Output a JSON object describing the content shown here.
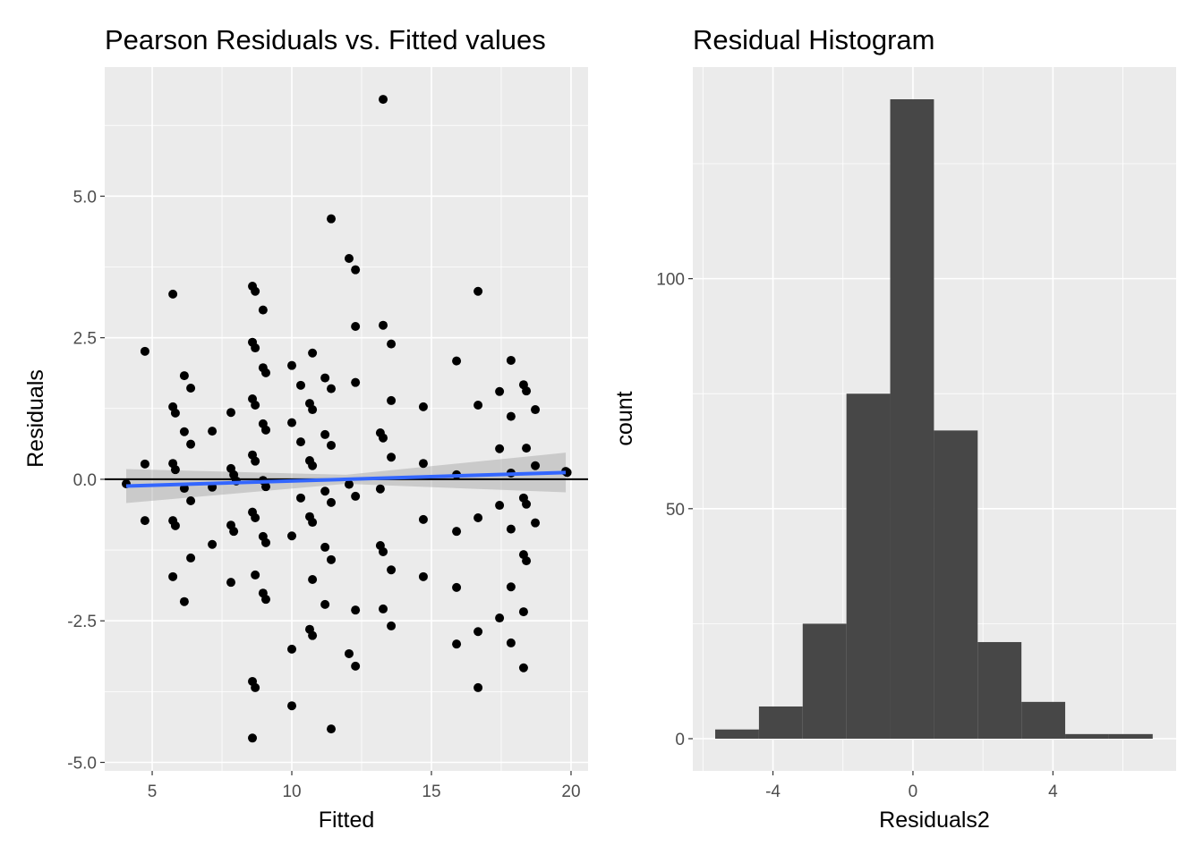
{
  "chart_data": [
    {
      "type": "scatter",
      "title": "Pearson Residuals vs. Fitted values",
      "xlabel": "Fitted",
      "ylabel": "Residuals",
      "xlim": [
        3.3,
        20.61
      ],
      "ylim": [
        -5.15,
        7.28
      ],
      "xticks": [
        5,
        10,
        15,
        20
      ],
      "xtick_labels": [
        "5",
        "10",
        "15",
        "20"
      ],
      "yticks": [
        -5,
        -2.5,
        0,
        2.5,
        5
      ],
      "ytick_labels": [
        "-5.0",
        "-2.5",
        "0.0",
        "2.5",
        "5.0"
      ],
      "grid": true,
      "hline": 0,
      "smooth": {
        "color": "#3366FF",
        "x": [
          4.07,
          19.81
        ],
        "y": [
          -0.12,
          0.12
        ],
        "ci_halfwidth": [
          0.3,
          0.08,
          0.35
        ]
      },
      "points": [
        [
          4.07,
          -0.08
        ],
        [
          4.74,
          2.26
        ],
        [
          4.74,
          0.27
        ],
        [
          4.74,
          -0.73
        ],
        [
          5.74,
          3.27
        ],
        [
          5.74,
          1.28
        ],
        [
          5.74,
          0.28
        ],
        [
          5.74,
          -0.73
        ],
        [
          5.74,
          -1.72
        ],
        [
          5.83,
          1.17
        ],
        [
          5.83,
          0.17
        ],
        [
          5.83,
          -0.82
        ],
        [
          6.15,
          1.83
        ],
        [
          6.15,
          0.84
        ],
        [
          6.15,
          -0.16
        ],
        [
          6.15,
          -2.16
        ],
        [
          6.38,
          1.61
        ],
        [
          6.38,
          0.62
        ],
        [
          6.38,
          -0.38
        ],
        [
          6.38,
          -1.39
        ],
        [
          7.15,
          0.85
        ],
        [
          7.15,
          -0.14
        ],
        [
          7.15,
          -1.15
        ],
        [
          7.82,
          1.18
        ],
        [
          7.82,
          0.19
        ],
        [
          7.82,
          -0.81
        ],
        [
          7.82,
          -1.82
        ],
        [
          7.92,
          0.08
        ],
        [
          7.92,
          -0.92
        ],
        [
          8.01,
          -0.03
        ],
        [
          8.59,
          3.41
        ],
        [
          8.59,
          2.42
        ],
        [
          8.59,
          1.42
        ],
        [
          8.59,
          0.43
        ],
        [
          8.59,
          -0.58
        ],
        [
          8.59,
          -3.57
        ],
        [
          8.59,
          -4.57
        ],
        [
          8.69,
          3.32
        ],
        [
          8.69,
          2.32
        ],
        [
          8.69,
          1.31
        ],
        [
          8.69,
          0.32
        ],
        [
          8.69,
          -0.68
        ],
        [
          8.69,
          -1.69
        ],
        [
          8.69,
          -3.68
        ],
        [
          8.97,
          2.99
        ],
        [
          8.97,
          1.97
        ],
        [
          8.97,
          0.98
        ],
        [
          8.97,
          -0.02
        ],
        [
          8.97,
          -1.01
        ],
        [
          8.97,
          -2.01
        ],
        [
          9.07,
          1.88
        ],
        [
          9.07,
          0.87
        ],
        [
          9.07,
          -0.13
        ],
        [
          9.07,
          -1.12
        ],
        [
          9.07,
          -2.12
        ],
        [
          10.0,
          2.01
        ],
        [
          10.0,
          1.0
        ],
        [
          10.0,
          -1.0
        ],
        [
          10.0,
          -3.0
        ],
        [
          10.0,
          -4.0
        ],
        [
          10.32,
          1.66
        ],
        [
          10.32,
          0.66
        ],
        [
          10.32,
          -0.33
        ],
        [
          10.64,
          1.34
        ],
        [
          10.64,
          0.33
        ],
        [
          10.64,
          -0.66
        ],
        [
          10.64,
          -2.65
        ],
        [
          10.74,
          2.23
        ],
        [
          10.74,
          1.23
        ],
        [
          10.74,
          0.24
        ],
        [
          10.74,
          -0.76
        ],
        [
          10.74,
          -1.77
        ],
        [
          10.74,
          -2.76
        ],
        [
          11.19,
          1.79
        ],
        [
          11.19,
          0.79
        ],
        [
          11.19,
          -0.21
        ],
        [
          11.19,
          -1.2
        ],
        [
          11.19,
          -2.21
        ],
        [
          11.41,
          4.6
        ],
        [
          11.41,
          1.6
        ],
        [
          11.41,
          0.6
        ],
        [
          11.41,
          -0.41
        ],
        [
          11.41,
          -1.42
        ],
        [
          11.41,
          -4.41
        ],
        [
          12.05,
          3.9
        ],
        [
          12.05,
          -0.09
        ],
        [
          12.05,
          -3.08
        ],
        [
          12.28,
          3.7
        ],
        [
          12.28,
          2.7
        ],
        [
          12.28,
          1.71
        ],
        [
          12.28,
          -0.3
        ],
        [
          12.28,
          -2.31
        ],
        [
          12.28,
          -3.3
        ],
        [
          13.17,
          0.82
        ],
        [
          13.17,
          -0.17
        ],
        [
          13.17,
          -1.17
        ],
        [
          13.27,
          6.71
        ],
        [
          13.27,
          2.72
        ],
        [
          13.27,
          0.73
        ],
        [
          13.27,
          -1.28
        ],
        [
          13.27,
          -2.29
        ],
        [
          13.56,
          2.39
        ],
        [
          13.56,
          1.39
        ],
        [
          13.56,
          0.39
        ],
        [
          13.56,
          -1.6
        ],
        [
          13.56,
          -2.59
        ],
        [
          14.71,
          1.28
        ],
        [
          14.71,
          0.28
        ],
        [
          14.71,
          -0.71
        ],
        [
          14.71,
          -1.72
        ],
        [
          15.9,
          2.09
        ],
        [
          15.9,
          0.08
        ],
        [
          15.9,
          -0.92
        ],
        [
          15.9,
          -1.91
        ],
        [
          15.9,
          -2.91
        ],
        [
          16.67,
          3.32
        ],
        [
          16.67,
          1.31
        ],
        [
          16.67,
          -0.68
        ],
        [
          16.67,
          -2.69
        ],
        [
          16.67,
          -3.68
        ],
        [
          17.44,
          1.55
        ],
        [
          17.44,
          0.54
        ],
        [
          17.44,
          -0.46
        ],
        [
          17.44,
          -2.45
        ],
        [
          17.85,
          2.1
        ],
        [
          17.85,
          1.11
        ],
        [
          17.85,
          0.11
        ],
        [
          17.85,
          -0.88
        ],
        [
          17.85,
          -1.9
        ],
        [
          17.85,
          -2.89
        ],
        [
          18.3,
          1.67
        ],
        [
          18.3,
          -0.33
        ],
        [
          18.3,
          -1.33
        ],
        [
          18.3,
          -2.34
        ],
        [
          18.3,
          -3.33
        ],
        [
          18.4,
          1.56
        ],
        [
          18.4,
          0.55
        ],
        [
          18.4,
          -0.44
        ],
        [
          18.4,
          -1.44
        ],
        [
          18.72,
          1.23
        ],
        [
          18.72,
          0.24
        ],
        [
          18.72,
          -0.77
        ],
        [
          19.81,
          0.14
        ],
        [
          19.86,
          0.12
        ]
      ]
    },
    {
      "type": "bar",
      "title": "Residual Histogram",
      "xlabel": "Residuals2",
      "ylabel": "count",
      "xlim": [
        -6.29,
        7.52
      ],
      "ylim": [
        -7,
        146
      ],
      "xticks": [
        -4,
        0,
        4
      ],
      "xtick_labels": [
        "-4",
        "0",
        "4"
      ],
      "yticks": [
        0,
        50,
        100
      ],
      "ytick_labels": [
        "0",
        "50",
        "100"
      ],
      "grid": true,
      "bar_color": "#474747",
      "bin_edges": [
        -5.65,
        -4.4,
        -3.15,
        -1.9,
        -0.65,
        0.6,
        1.85,
        3.1,
        4.35,
        5.6,
        6.85
      ],
      "values": [
        2,
        7,
        25,
        75,
        139,
        67,
        21,
        8,
        1,
        1
      ]
    }
  ]
}
